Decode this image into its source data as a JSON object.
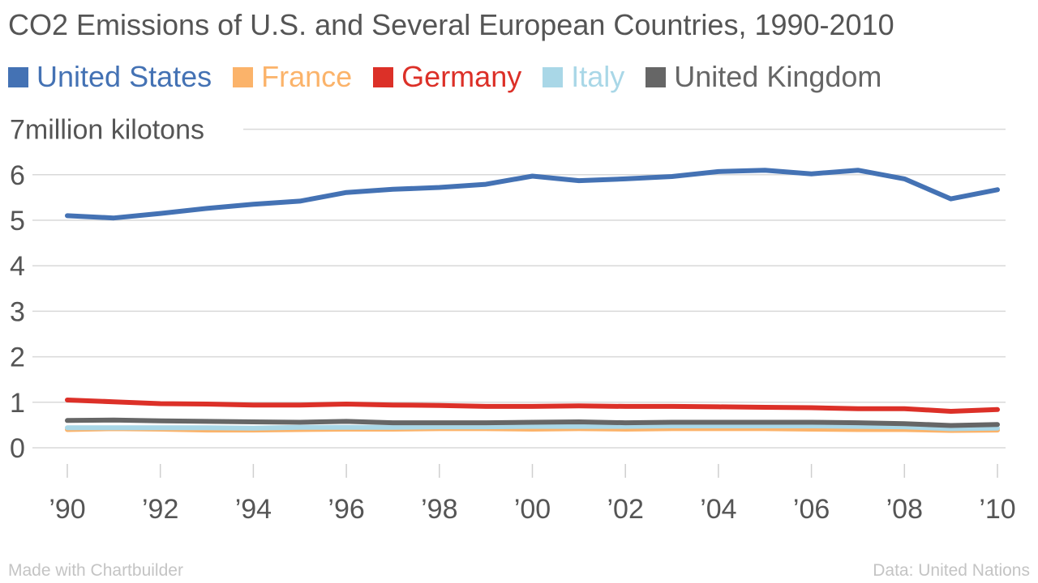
{
  "header": {
    "title": "CO2 Emissions of U.S. and Several European Countries, 1990-2010"
  },
  "footer": {
    "credit": "Made with Chartbuilder",
    "source": "Data: United Nations"
  },
  "chart_data": {
    "type": "line",
    "title": "CO2 Emissions of U.S. and Several European Countries, 1990-2010",
    "ylabel": "million kilotons",
    "xlabel": "",
    "x": [
      1990,
      1991,
      1992,
      1993,
      1994,
      1995,
      1996,
      1997,
      1998,
      1999,
      2000,
      2001,
      2002,
      2003,
      2004,
      2005,
      2006,
      2007,
      2008,
      2009,
      2010
    ],
    "x_tick_labels": [
      "’90",
      "’92",
      "’94",
      "’96",
      "’98",
      "’00",
      "’02",
      "’04",
      "’06",
      "’08",
      "’10"
    ],
    "y_ticks": [
      0,
      1,
      2,
      3,
      4,
      5,
      6,
      7
    ],
    "top_tick_label": "7million kilotons",
    "ylim": [
      0,
      7
    ],
    "grid": true,
    "legend_position": "top-left",
    "series": [
      {
        "name": "United States",
        "color": "#4472b4",
        "values": [
          5.1,
          5.05,
          5.15,
          5.26,
          5.35,
          5.42,
          5.61,
          5.68,
          5.72,
          5.79,
          5.97,
          5.87,
          5.91,
          5.96,
          6.07,
          6.1,
          6.02,
          6.1,
          5.91,
          5.47,
          5.67
        ]
      },
      {
        "name": "France",
        "color": "#fbb36a",
        "values": [
          0.4,
          0.42,
          0.41,
          0.39,
          0.39,
          0.4,
          0.41,
          0.41,
          0.42,
          0.42,
          0.41,
          0.42,
          0.41,
          0.42,
          0.42,
          0.42,
          0.41,
          0.4,
          0.4,
          0.38,
          0.39
        ]
      },
      {
        "name": "Germany",
        "color": "#dc3028",
        "values": [
          1.05,
          1.01,
          0.97,
          0.96,
          0.94,
          0.94,
          0.96,
          0.94,
          0.93,
          0.91,
          0.91,
          0.92,
          0.91,
          0.91,
          0.9,
          0.89,
          0.88,
          0.86,
          0.86,
          0.8,
          0.84
        ]
      },
      {
        "name": "Italy",
        "color": "#a9d7e7",
        "values": [
          0.44,
          0.44,
          0.44,
          0.44,
          0.43,
          0.45,
          0.45,
          0.45,
          0.46,
          0.46,
          0.47,
          0.47,
          0.47,
          0.48,
          0.48,
          0.48,
          0.48,
          0.47,
          0.46,
          0.42,
          0.43
        ]
      },
      {
        "name": "United Kingdom",
        "color": "#666666",
        "values": [
          0.6,
          0.61,
          0.59,
          0.58,
          0.57,
          0.56,
          0.58,
          0.55,
          0.55,
          0.55,
          0.56,
          0.57,
          0.55,
          0.56,
          0.56,
          0.56,
          0.56,
          0.55,
          0.53,
          0.49,
          0.51
        ]
      }
    ]
  }
}
